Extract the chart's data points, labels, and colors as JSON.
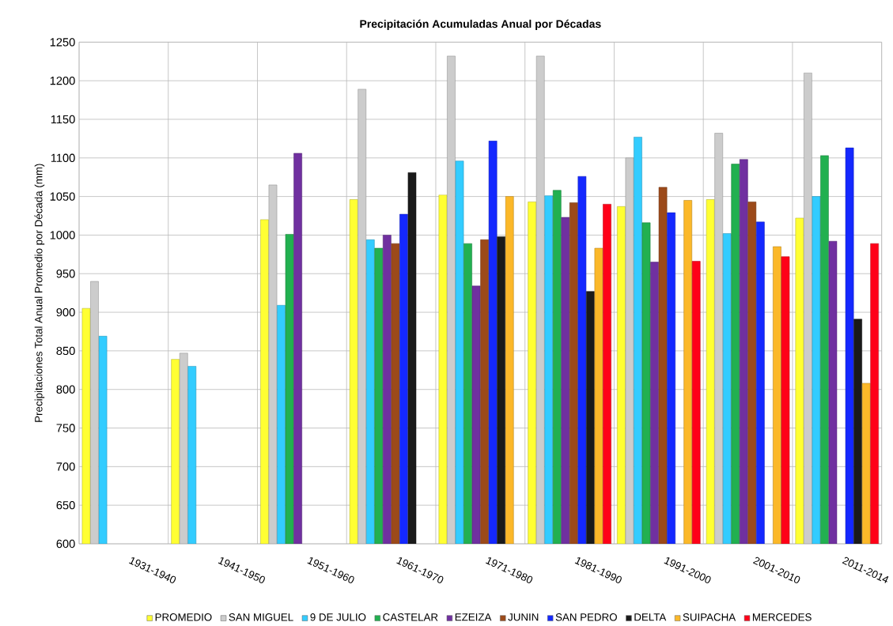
{
  "chart_data": {
    "type": "bar",
    "title": "Precipitación Acumuladas Anual por Décadas",
    "ylabel": "Precipitaciones Total Anual Promedio por Década (mm)",
    "categories": [
      "1931-1940",
      "1941-1950",
      "1951-1960",
      "1961-1970",
      "1971-1980",
      "1981-1990",
      "1991-2000",
      "2001-2010",
      "2011-2014"
    ],
    "series": [
      {
        "name": "PROMEDIO",
        "color": "#ffff33",
        "values": [
          905,
          839,
          1020,
          1046,
          1052,
          1043,
          1037,
          1046,
          1022
        ]
      },
      {
        "name": "SAN MIGUEL",
        "color": "#cccccc",
        "values": [
          940,
          847,
          1065,
          1189,
          1232,
          1232,
          1100,
          1132,
          1210
        ]
      },
      {
        "name": "9 DE JULIO",
        "color": "#33ccff",
        "values": [
          869,
          830,
          909,
          994,
          1096,
          1051,
          1127,
          1002,
          1050
        ]
      },
      {
        "name": "CASTELAR",
        "color": "#22b050",
        "values": [
          null,
          null,
          1001,
          983,
          989,
          1058,
          1016,
          1092,
          1103
        ]
      },
      {
        "name": "EZEIZA",
        "color": "#7030a0",
        "values": [
          null,
          null,
          1106,
          1000,
          934,
          1023,
          965,
          1098,
          992
        ]
      },
      {
        "name": "JUNIN",
        "color": "#9c4a1a",
        "values": [
          null,
          null,
          null,
          989,
          994,
          1042,
          1062,
          1043,
          null
        ]
      },
      {
        "name": "SAN PEDRO",
        "color": "#1428ff",
        "values": [
          null,
          null,
          null,
          1027,
          1122,
          1076,
          1029,
          1017,
          1113
        ]
      },
      {
        "name": "DELTA",
        "color": "#1a1a1a",
        "values": [
          null,
          null,
          null,
          1081,
          998,
          927,
          null,
          null,
          891
        ]
      },
      {
        "name": "SUIPACHA",
        "color": "#fbb829",
        "values": [
          null,
          null,
          null,
          null,
          1050,
          983,
          1045,
          985,
          808
        ]
      },
      {
        "name": "MERCEDES",
        "color": "#ff0018",
        "values": [
          null,
          null,
          null,
          null,
          null,
          1040,
          966,
          972,
          989
        ]
      }
    ],
    "ylim": [
      600,
      1250
    ],
    "yticks": [
      600,
      650,
      700,
      750,
      800,
      850,
      900,
      950,
      1000,
      1050,
      1100,
      1150,
      1200,
      1250
    ],
    "grid": true,
    "legend": "bottom"
  }
}
